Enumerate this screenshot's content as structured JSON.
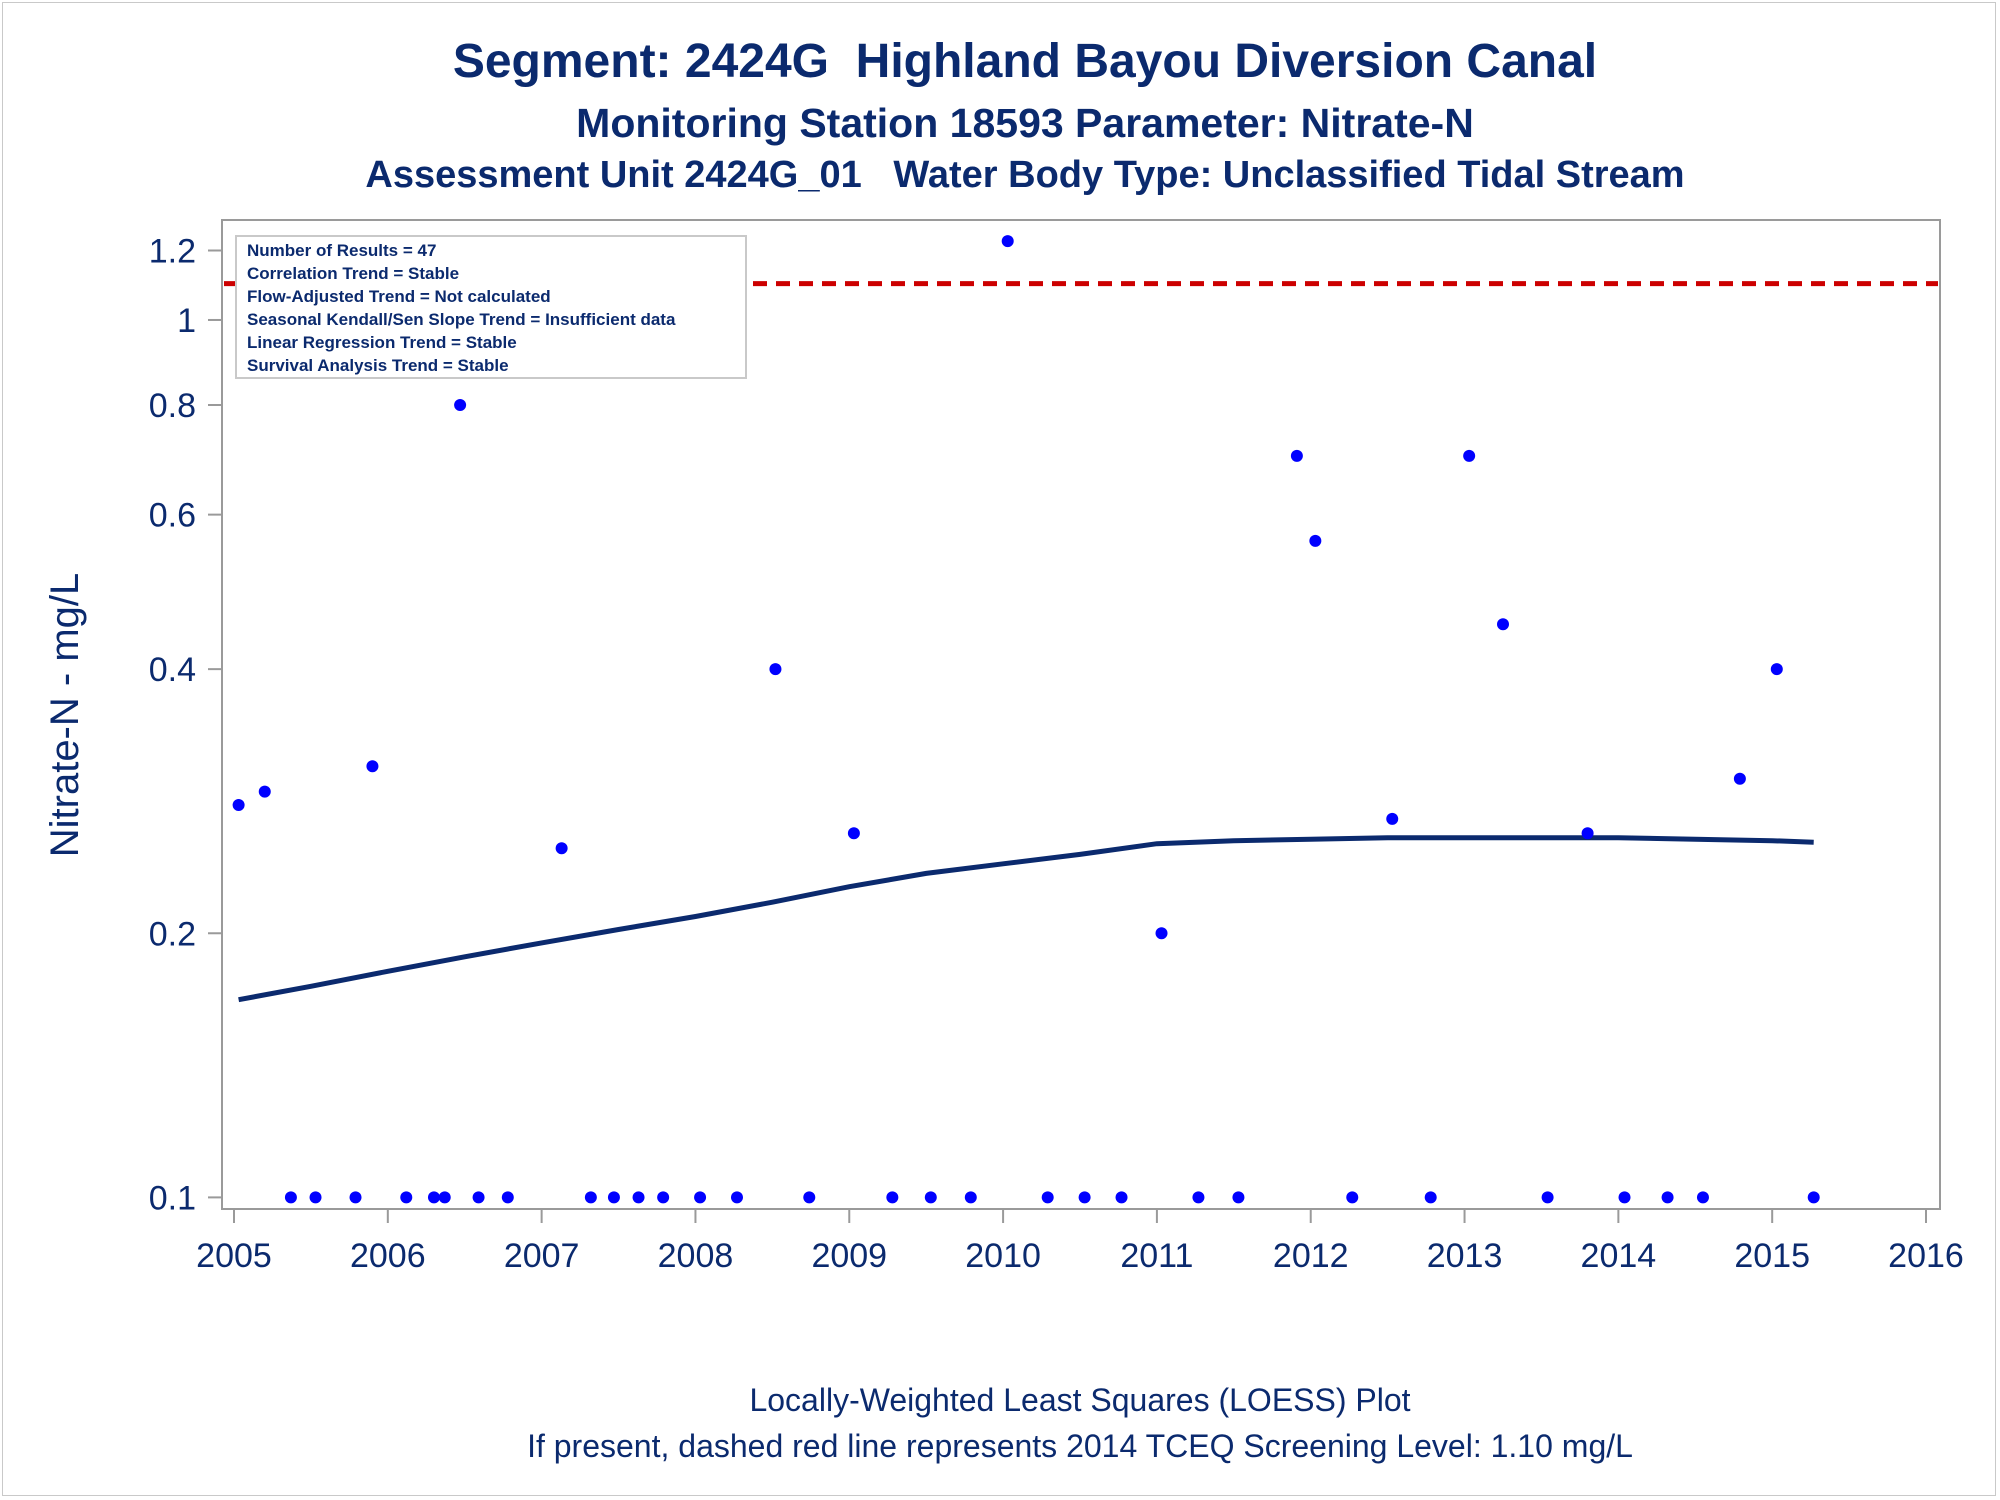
{
  "titles": {
    "line1": "Segment: 2424G  Highland Bayou Diversion Canal",
    "line2": "Monitoring Station 18593 Parameter: Nitrate-N",
    "line3": "Assessment Unit 2424G_01   Water Body Type: Unclassified Tidal Stream"
  },
  "footnotes": {
    "line1": "Locally-Weighted Least Squares (LOESS) Plot",
    "line2": "If present, dashed red line represents 2014 TCEQ Screening Level: 1.10 mg/L"
  },
  "legend_box": {
    "lines": [
      "Number of Results = 47",
      "Correlation Trend = Stable",
      "Flow-Adjusted Trend = Not calculated",
      "Seasonal Kendall/Sen Slope Trend = Insufficient data",
      "Linear Regression Trend = Stable",
      "Survival Analysis Trend = Stable"
    ]
  },
  "colors": {
    "text": "#0b2a6e",
    "points": "#0000ff",
    "loess": "#0b2a6e",
    "screening": "#cc0000",
    "axis": "#9a9a9a"
  },
  "chart_data": {
    "type": "scatter",
    "xlabel": "",
    "ylabel": "Nitrate-N - mg/L",
    "y_scale": "log",
    "xlim": [
      2005,
      2016
    ],
    "ylim": [
      0.097,
      1.3
    ],
    "x_ticks": [
      2005,
      2006,
      2007,
      2008,
      2009,
      2010,
      2011,
      2012,
      2013,
      2014,
      2015,
      2016
    ],
    "y_ticks": [
      {
        "value": 0.1,
        "label": "0.1"
      },
      {
        "value": 0.2,
        "label": "0.2"
      },
      {
        "value": 0.4,
        "label": "0.4"
      },
      {
        "value": 0.6,
        "label": "0.6"
      },
      {
        "value": 0.8,
        "label": "0.8"
      },
      {
        "value": 1.0,
        "label": "1"
      },
      {
        "value": 1.2,
        "label": "1.2"
      }
    ],
    "screening_level": 1.1,
    "series": [
      {
        "type": "scatter",
        "points": [
          [
            2005.03,
            0.28
          ],
          [
            2005.2,
            0.29
          ],
          [
            2005.37,
            0.1
          ],
          [
            2005.53,
            0.1
          ],
          [
            2005.79,
            0.1
          ],
          [
            2005.9,
            0.31
          ],
          [
            2006.12,
            0.1
          ],
          [
            2006.3,
            0.1
          ],
          [
            2006.37,
            0.1
          ],
          [
            2006.47,
            0.8
          ],
          [
            2006.59,
            0.1
          ],
          [
            2006.78,
            0.1
          ],
          [
            2007.13,
            0.25
          ],
          [
            2007.32,
            0.1
          ],
          [
            2007.47,
            0.1
          ],
          [
            2007.63,
            0.1
          ],
          [
            2007.79,
            0.1
          ],
          [
            2008.03,
            0.1
          ],
          [
            2008.27,
            0.1
          ],
          [
            2008.52,
            0.4
          ],
          [
            2008.74,
            0.1
          ],
          [
            2009.03,
            0.26
          ],
          [
            2009.28,
            0.1
          ],
          [
            2009.53,
            0.1
          ],
          [
            2009.79,
            0.1
          ],
          [
            2010.03,
            1.23
          ],
          [
            2010.29,
            0.1
          ],
          [
            2010.53,
            0.1
          ],
          [
            2010.77,
            0.1
          ],
          [
            2011.03,
            0.2
          ],
          [
            2011.27,
            0.1
          ],
          [
            2011.53,
            0.1
          ],
          [
            2011.91,
            0.7
          ],
          [
            2012.03,
            0.56
          ],
          [
            2012.27,
            0.1
          ],
          [
            2012.53,
            0.27
          ],
          [
            2012.78,
            0.1
          ],
          [
            2013.03,
            0.7
          ],
          [
            2013.25,
            0.45
          ],
          [
            2013.54,
            0.1
          ],
          [
            2013.8,
            0.26
          ],
          [
            2014.04,
            0.1
          ],
          [
            2014.32,
            0.1
          ],
          [
            2014.55,
            0.1
          ],
          [
            2014.79,
            0.3
          ],
          [
            2015.03,
            0.4
          ],
          [
            2015.27,
            0.1
          ]
        ]
      },
      {
        "type": "line",
        "points": [
          [
            2005.03,
            0.168
          ],
          [
            2005.5,
            0.174
          ],
          [
            2006.0,
            0.181
          ],
          [
            2006.5,
            0.188
          ],
          [
            2007.0,
            0.195
          ],
          [
            2007.5,
            0.202
          ],
          [
            2008.0,
            0.209
          ],
          [
            2008.5,
            0.217
          ],
          [
            2009.0,
            0.226
          ],
          [
            2009.5,
            0.234
          ],
          [
            2010.0,
            0.24
          ],
          [
            2010.5,
            0.246
          ],
          [
            2011.0,
            0.253
          ],
          [
            2011.5,
            0.255
          ],
          [
            2012.0,
            0.256
          ],
          [
            2012.5,
            0.257
          ],
          [
            2013.0,
            0.257
          ],
          [
            2013.5,
            0.257
          ],
          [
            2014.0,
            0.257
          ],
          [
            2014.5,
            0.256
          ],
          [
            2015.0,
            0.255
          ],
          [
            2015.27,
            0.254
          ]
        ]
      }
    ]
  }
}
